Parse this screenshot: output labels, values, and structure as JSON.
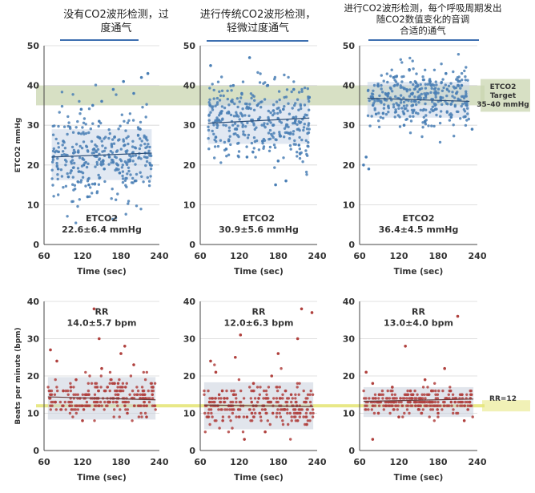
{
  "columns": [
    {
      "title_lines": [
        "没有CO2波形检测，过",
        "度通气"
      ]
    },
    {
      "title_lines": [
        "进行传统CO2波形检测，",
        "轻微过度通气"
      ]
    },
    {
      "title_lines": [
        "进行CO2波形检测，每个呼吸周期发出",
        "随CO2数值变化的音调",
        "合适的通气"
      ]
    }
  ],
  "etco2_band": {
    "lines": [
      "ETCO2",
      "Target",
      "35–40 mmHg"
    ]
  },
  "rr_line_label": "RR=12",
  "colors": {
    "etco2_points": "#4a7fb5",
    "rr_points": "#b0413e",
    "target_band": "#c9d5b0",
    "rr_line": "#e6e67a",
    "bar": "#3d6fb0"
  },
  "chart_data": [
    {
      "type": "scatter",
      "ylabel": "ETCO2 mmHg",
      "xlabel": "Time (sec)",
      "xlim": [
        60,
        240
      ],
      "ylim": [
        0,
        50
      ],
      "x_ticks": [
        60,
        120,
        180,
        240
      ],
      "y_ticks": [
        0,
        10,
        20,
        30,
        40,
        50
      ],
      "stat_label": "ETCO2",
      "stat_value": "22.6±6.4 mmHg",
      "mean": 22.6,
      "sd": 6.4,
      "trend": [
        [
          72,
          22.0
        ],
        [
          228,
          23.0
        ]
      ],
      "x_range": [
        72,
        228
      ],
      "points": [
        [
          74,
          22
        ],
        [
          82,
          19
        ],
        [
          90,
          26
        ],
        [
          98,
          17
        ],
        [
          106,
          23
        ],
        [
          114,
          28
        ],
        [
          122,
          20
        ],
        [
          130,
          15
        ],
        [
          138,
          24
        ],
        [
          146,
          31
        ],
        [
          154,
          19
        ],
        [
          162,
          22
        ],
        [
          170,
          27
        ],
        [
          178,
          18
        ],
        [
          186,
          25
        ],
        [
          194,
          21
        ],
        [
          202,
          16
        ],
        [
          210,
          29
        ],
        [
          218,
          23
        ],
        [
          226,
          20
        ],
        [
          168,
          39
        ],
        [
          184,
          41
        ],
        [
          200,
          38
        ],
        [
          212,
          42
        ],
        [
          222,
          43
        ],
        [
          150,
          36
        ],
        [
          136,
          35
        ],
        [
          118,
          34
        ],
        [
          128,
          12
        ]
      ]
    },
    {
      "type": "scatter",
      "xlabel": "Time (sec)",
      "xlim": [
        60,
        240
      ],
      "ylim": [
        0,
        50
      ],
      "x_ticks": [
        60,
        120,
        180,
        240
      ],
      "y_ticks": [
        0,
        10,
        20,
        30,
        40,
        50
      ],
      "stat_label": "ETCO2",
      "stat_value": "30.9±5.6 mmHg",
      "mean": 30.9,
      "sd": 5.6,
      "trend": [
        [
          72,
          30.5
        ],
        [
          228,
          31.8
        ]
      ],
      "x_range": [
        72,
        228
      ],
      "points": [
        [
          76,
          45
        ],
        [
          84,
          27
        ],
        [
          92,
          33
        ],
        [
          100,
          24
        ],
        [
          108,
          36
        ],
        [
          116,
          29
        ],
        [
          124,
          38
        ],
        [
          132,
          22
        ],
        [
          140,
          31
        ],
        [
          148,
          35
        ],
        [
          156,
          26
        ],
        [
          164,
          40
        ],
        [
          172,
          30
        ],
        [
          180,
          21
        ],
        [
          188,
          34
        ],
        [
          196,
          28
        ],
        [
          204,
          39
        ],
        [
          212,
          25
        ],
        [
          220,
          32
        ],
        [
          228,
          37
        ],
        [
          136,
          47
        ],
        [
          192,
          16
        ],
        [
          176,
          15
        ]
      ]
    },
    {
      "type": "scatter",
      "xlabel": "Time (sec)",
      "xlim": [
        60,
        240
      ],
      "ylim": [
        0,
        50
      ],
      "x_ticks": [
        60,
        120,
        180,
        240
      ],
      "y_ticks": [
        0,
        10,
        20,
        30,
        40,
        50
      ],
      "stat_label": "ETCO2",
      "stat_value": "36.4±4.5 mmHg",
      "mean": 36.4,
      "sd": 4.5,
      "trend": [
        [
          72,
          36.8
        ],
        [
          228,
          36.0
        ]
      ],
      "x_range": [
        72,
        228
      ],
      "points": [
        [
          66,
          20
        ],
        [
          70,
          22
        ],
        [
          74,
          19
        ],
        [
          80,
          37
        ],
        [
          88,
          40
        ],
        [
          96,
          33
        ],
        [
          104,
          38
        ],
        [
          112,
          42
        ],
        [
          120,
          35
        ],
        [
          128,
          30
        ],
        [
          136,
          44
        ],
        [
          144,
          36
        ],
        [
          152,
          39
        ],
        [
          160,
          31
        ],
        [
          168,
          41
        ],
        [
          176,
          34
        ],
        [
          184,
          37
        ],
        [
          192,
          43
        ],
        [
          200,
          32
        ],
        [
          208,
          38
        ],
        [
          216,
          40
        ],
        [
          224,
          35
        ],
        [
          232,
          29
        ]
      ]
    },
    {
      "type": "scatter",
      "ylabel": "Beats per minute (bpm)",
      "xlabel": "Time (sec)",
      "xlim": [
        60,
        240
      ],
      "ylim": [
        0,
        40
      ],
      "x_ticks": [
        60,
        120,
        180,
        240
      ],
      "y_ticks": [
        0,
        10,
        20,
        30,
        40
      ],
      "stat_label": "RR",
      "stat_value": "14.0±5.7 bpm",
      "mean": 14.0,
      "sd": 5.7,
      "trend": [
        [
          66,
          14.4
        ],
        [
          234,
          13.6
        ]
      ],
      "x_range": [
        66,
        234
      ],
      "points": [
        [
          70,
          27
        ],
        [
          80,
          24
        ],
        [
          90,
          16
        ],
        [
          100,
          12
        ],
        [
          110,
          19
        ],
        [
          120,
          8
        ],
        [
          130,
          15
        ],
        [
          138,
          38
        ],
        [
          146,
          30
        ],
        [
          150,
          22
        ],
        [
          160,
          13
        ],
        [
          170,
          18
        ],
        [
          180,
          26
        ],
        [
          190,
          10
        ],
        [
          200,
          23
        ],
        [
          210,
          14
        ],
        [
          220,
          9
        ],
        [
          230,
          17
        ],
        [
          186,
          28
        ]
      ]
    },
    {
      "type": "scatter",
      "xlabel": "Time (sec)",
      "xlim": [
        60,
        240
      ],
      "ylim": [
        0,
        40
      ],
      "x_ticks": [
        60,
        120,
        180,
        240
      ],
      "y_ticks": [
        0,
        10,
        20,
        30,
        40
      ],
      "stat_label": "RR",
      "stat_value": "12.0±6.3 bpm",
      "mean": 12.0,
      "sd": 6.3,
      "trend": [
        [
          66,
          12.2
        ],
        [
          234,
          11.8
        ]
      ],
      "x_range": [
        66,
        234
      ],
      "points": [
        [
          76,
          24
        ],
        [
          84,
          21
        ],
        [
          94,
          16
        ],
        [
          104,
          12
        ],
        [
          114,
          25
        ],
        [
          122,
          31
        ],
        [
          132,
          9
        ],
        [
          142,
          18
        ],
        [
          150,
          14
        ],
        [
          160,
          5
        ],
        [
          170,
          20
        ],
        [
          180,
          26
        ],
        [
          190,
          11
        ],
        [
          200,
          15
        ],
        [
          210,
          30
        ],
        [
          216,
          38
        ],
        [
          224,
          7
        ],
        [
          232,
          37
        ],
        [
          128,
          3
        ]
      ]
    },
    {
      "type": "scatter",
      "xlabel": "Time (sec)",
      "xlim": [
        60,
        240
      ],
      "ylim": [
        0,
        40
      ],
      "x_ticks": [
        60,
        120,
        180,
        240
      ],
      "y_ticks": [
        0,
        10,
        20,
        30,
        40
      ],
      "stat_label": "RR",
      "stat_value": "13.0±4.0 bpm",
      "mean": 13.0,
      "sd": 4.0,
      "trend": [
        [
          66,
          13.2
        ],
        [
          234,
          13.8
        ]
      ],
      "x_range": [
        66,
        234
      ],
      "points": [
        [
          70,
          21
        ],
        [
          80,
          18
        ],
        [
          90,
          15
        ],
        [
          100,
          12
        ],
        [
          110,
          17
        ],
        [
          120,
          9
        ],
        [
          130,
          28
        ],
        [
          140,
          14
        ],
        [
          150,
          11
        ],
        [
          160,
          19
        ],
        [
          170,
          16
        ],
        [
          180,
          10
        ],
        [
          190,
          22
        ],
        [
          200,
          13
        ],
        [
          210,
          36
        ],
        [
          220,
          8
        ],
        [
          230,
          15
        ],
        [
          80,
          3
        ]
      ]
    }
  ]
}
